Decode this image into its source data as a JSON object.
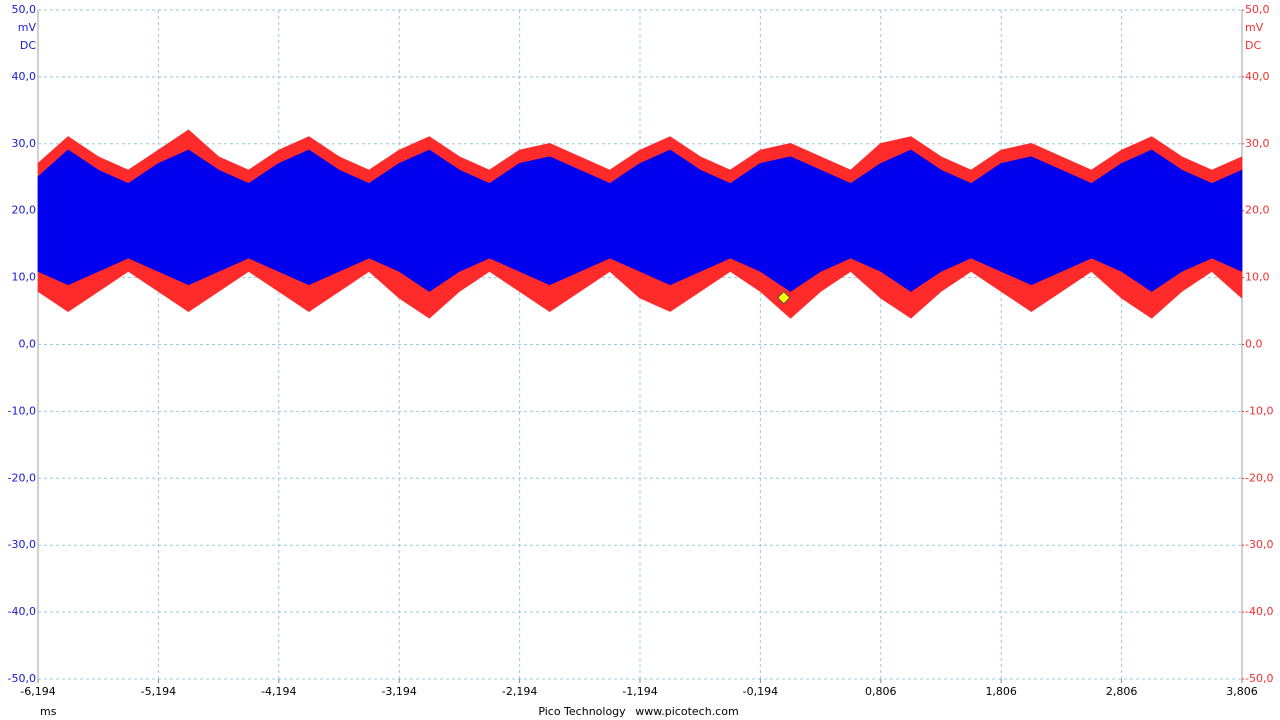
{
  "chart_data": {
    "type": "band",
    "x_unit": "ms",
    "y_unit": "mV",
    "y_coupling": "DC",
    "y2_unit": "mV",
    "y2_coupling": "DC",
    "footer_brand": "Pico Technology",
    "footer_url": "www.picotech.com",
    "grid": true,
    "xlim": [
      -6.194,
      3.806
    ],
    "xticks": [
      {
        "value": -6.194,
        "label": "-6,194"
      },
      {
        "value": -5.194,
        "label": "-5,194"
      },
      {
        "value": -4.194,
        "label": "-4,194"
      },
      {
        "value": -3.194,
        "label": "-3,194"
      },
      {
        "value": -2.194,
        "label": "-2,194"
      },
      {
        "value": -1.194,
        "label": "-1,194"
      },
      {
        "value": -0.194,
        "label": "-0,194"
      },
      {
        "value": 0.806,
        "label": "0,806"
      },
      {
        "value": 1.806,
        "label": "1,806"
      },
      {
        "value": 2.806,
        "label": "2,806"
      },
      {
        "value": 3.806,
        "label": "3,806"
      }
    ],
    "ylim": [
      -50,
      50
    ],
    "yticks": [
      {
        "value": 50,
        "label": "50,0"
      },
      {
        "value": 40,
        "label": "40,0"
      },
      {
        "value": 30,
        "label": "30,0"
      },
      {
        "value": 20,
        "label": "20,0"
      },
      {
        "value": 10,
        "label": "10,0"
      },
      {
        "value": 0,
        "label": "0,0"
      },
      {
        "value": -10,
        "label": "-10,0"
      },
      {
        "value": -20,
        "label": "-20,0"
      },
      {
        "value": -30,
        "label": "-30,0"
      },
      {
        "value": -40,
        "label": "-40,0"
      },
      {
        "value": -50,
        "label": "-50,0"
      }
    ],
    "y2lim": [
      -50,
      50
    ],
    "y2ticks": [
      {
        "value": 50,
        "label": "50,0"
      },
      {
        "value": 40,
        "label": "40,0"
      },
      {
        "value": 30,
        "label": "30,0"
      },
      {
        "value": 20,
        "label": "20,0"
      },
      {
        "value": 10,
        "label": "10,0"
      },
      {
        "value": 0,
        "label": "0,0"
      },
      {
        "value": -10,
        "label": "-10,0"
      },
      {
        "value": -20,
        "label": "-20,0"
      },
      {
        "value": -30,
        "label": "-30,0"
      },
      {
        "value": -40,
        "label": "-40,0"
      },
      {
        "value": -50,
        "label": "-50,0"
      }
    ],
    "y_color": "#1a1ad0",
    "y2_color": "#f03030",
    "x": [
      -6.194,
      -5.944,
      -5.694,
      -5.444,
      -5.194,
      -4.944,
      -4.694,
      -4.444,
      -4.194,
      -3.944,
      -3.694,
      -3.444,
      -3.194,
      -2.944,
      -2.694,
      -2.444,
      -2.194,
      -1.944,
      -1.694,
      -1.444,
      -1.194,
      -0.944,
      -0.694,
      -0.444,
      -0.194,
      0.056,
      0.306,
      0.556,
      0.806,
      1.056,
      1.306,
      1.556,
      1.806,
      2.056,
      2.306,
      2.556,
      2.806,
      3.056,
      3.306,
      3.556,
      3.806
    ],
    "series": [
      {
        "color": "#ff2a2a",
        "axis": "y2",
        "upper": [
          27,
          31,
          28,
          26,
          29,
          32,
          28,
          26,
          29,
          31,
          28,
          26,
          29,
          31,
          28,
          26,
          29,
          30,
          28,
          26,
          29,
          31,
          28,
          26,
          29,
          30,
          28,
          26,
          30,
          31,
          28,
          26,
          29,
          30,
          28,
          26,
          29,
          31,
          28,
          26,
          28
        ],
        "lower": [
          8,
          5,
          8,
          11,
          8,
          5,
          8,
          11,
          8,
          5,
          8,
          11,
          7,
          4,
          8,
          11,
          8,
          5,
          8,
          11,
          7,
          5,
          8,
          11,
          8,
          4,
          8,
          11,
          7,
          4,
          8,
          11,
          8,
          5,
          8,
          11,
          7,
          4,
          8,
          11,
          7
        ]
      },
      {
        "color": "#0000ee",
        "axis": "y",
        "upper": [
          25,
          29,
          26,
          24,
          27,
          29,
          26,
          24,
          27,
          29,
          26,
          24,
          27,
          29,
          26,
          24,
          27,
          28,
          26,
          24,
          27,
          29,
          26,
          24,
          27,
          28,
          26,
          24,
          27,
          29,
          26,
          24,
          27,
          28,
          26,
          24,
          27,
          29,
          26,
          24,
          26
        ],
        "lower": [
          11,
          9,
          11,
          13,
          11,
          9,
          11,
          13,
          11,
          9,
          11,
          13,
          11,
          8,
          11,
          13,
          11,
          9,
          11,
          13,
          11,
          9,
          11,
          13,
          11,
          8,
          11,
          13,
          11,
          8,
          11,
          13,
          11,
          9,
          11,
          13,
          11,
          8,
          11,
          13,
          11
        ]
      }
    ],
    "trigger": {
      "x": 0,
      "y": 7,
      "color": "#ffff00"
    }
  }
}
